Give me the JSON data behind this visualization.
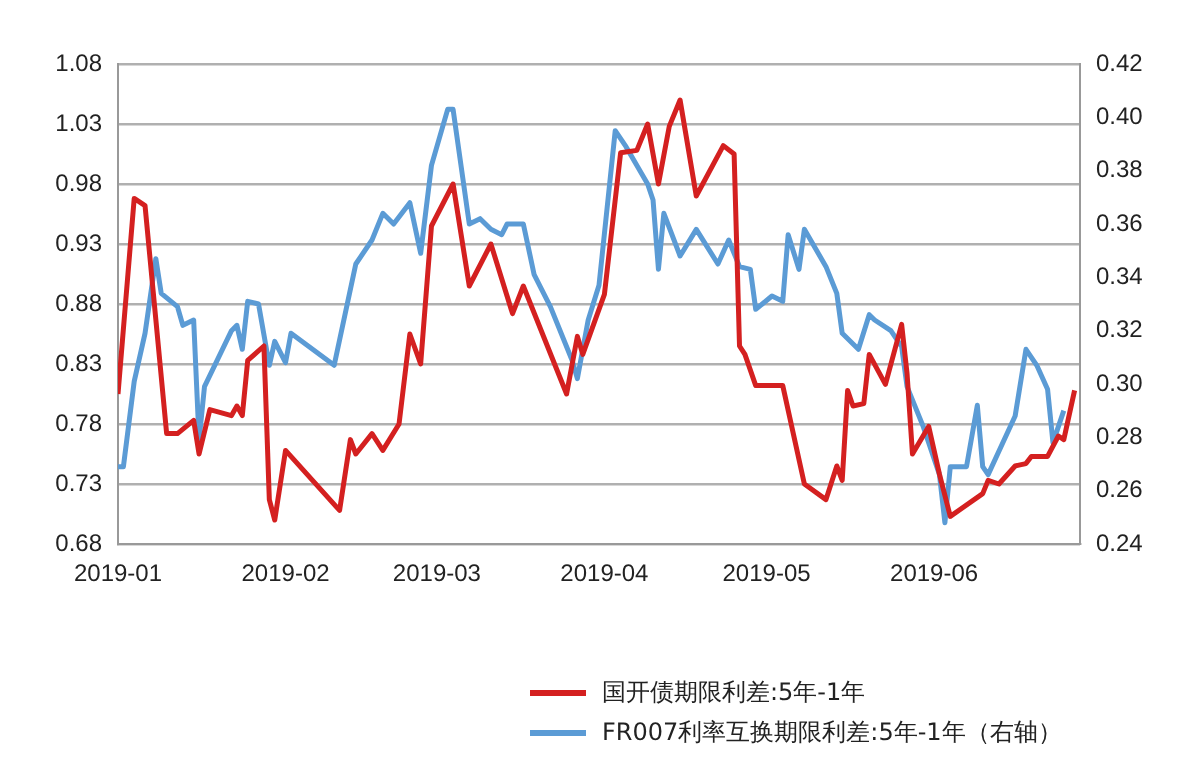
{
  "chart_data": {
    "type": "line",
    "xlim": [
      "2019-01-01",
      "2019-06-28"
    ],
    "xticks": [
      {
        "value": "2019-01-01",
        "label": "2019-01"
      },
      {
        "value": "2019-02-01",
        "label": "2019-02"
      },
      {
        "value": "2019-03-01",
        "label": "2019-03"
      },
      {
        "value": "2019-04-01",
        "label": "2019-04"
      },
      {
        "value": "2019-05-01",
        "label": "2019-05"
      },
      {
        "value": "2019-06-01",
        "label": "2019-06"
      }
    ],
    "ylim": [
      0.68,
      1.08
    ],
    "yticks": [
      0.68,
      0.73,
      0.78,
      0.83,
      0.88,
      0.93,
      0.98,
      1.03,
      1.08
    ],
    "y2lim": [
      0.24,
      0.42
    ],
    "y2ticks": [
      0.24,
      0.26,
      0.28,
      {
        "value": 0.3,
        "label": "0.30"
      },
      0.32,
      0.34,
      0.36,
      0.38,
      {
        "value": 0.4,
        "label": "0.40"
      },
      0.42
    ],
    "grid": "y",
    "legend": "bottom",
    "marker": "none",
    "line_style": "solid",
    "series": [
      {
        "name": "国开债期限利差:5年-1年",
        "color": "#d42020",
        "x": [
          "2019-01-01",
          "2019-01-04",
          "2019-01-06",
          "2019-01-10",
          "2019-01-12",
          "2019-01-15",
          "2019-01-16",
          "2019-01-18",
          "2019-01-22",
          "2019-01-23",
          "2019-01-24",
          "2019-01-25",
          "2019-01-28",
          "2019-01-29",
          "2019-01-30",
          "2019-02-01",
          "2019-02-11",
          "2019-02-13",
          "2019-02-14",
          "2019-02-17",
          "2019-02-19",
          "2019-02-22",
          "2019-02-24",
          "2019-02-26",
          "2019-02-28",
          "2019-03-04",
          "2019-03-07",
          "2019-03-11",
          "2019-03-15",
          "2019-03-17",
          "2019-03-25",
          "2019-03-27",
          "2019-03-28",
          "2019-04-01",
          "2019-04-04",
          "2019-04-07",
          "2019-04-09",
          "2019-04-11",
          "2019-04-13",
          "2019-04-15",
          "2019-04-18",
          "2019-04-23",
          "2019-04-25",
          "2019-04-26",
          "2019-04-27",
          "2019-04-29",
          "2019-05-04",
          "2019-05-08",
          "2019-05-12",
          "2019-05-14",
          "2019-05-15",
          "2019-05-16",
          "2019-05-17",
          "2019-05-19",
          "2019-05-20",
          "2019-05-23",
          "2019-05-26",
          "2019-05-27",
          "2019-05-28",
          "2019-05-31",
          "2019-06-02",
          "2019-06-04",
          "2019-06-10",
          "2019-06-11",
          "2019-06-13",
          "2019-06-16",
          "2019-06-18",
          "2019-06-19",
          "2019-06-22",
          "2019-06-24",
          "2019-06-25",
          "2019-06-27"
        ],
        "values": [
          0.805,
          0.968,
          0.962,
          0.772,
          0.772,
          0.783,
          0.755,
          0.792,
          0.787,
          0.795,
          0.787,
          0.833,
          0.845,
          0.717,
          0.7,
          0.758,
          0.708,
          0.767,
          0.755,
          0.772,
          0.758,
          0.78,
          0.855,
          0.83,
          0.945,
          0.98,
          0.895,
          0.93,
          0.872,
          0.895,
          0.805,
          0.853,
          0.838,
          0.888,
          1.006,
          1.008,
          1.03,
          0.98,
          1.028,
          1.05,
          0.97,
          1.012,
          1.005,
          0.845,
          0.838,
          0.812,
          0.812,
          0.73,
          0.717,
          0.745,
          0.733,
          0.808,
          0.795,
          0.797,
          0.838,
          0.813,
          0.863,
          0.822,
          0.755,
          0.778,
          0.738,
          0.703,
          0.722,
          0.733,
          0.73,
          0.745,
          0.747,
          0.753,
          0.753,
          0.77,
          0.767,
          0.808
        ]
      },
      {
        "name": "FR007利率互换期限利差:5年-1年（右轴）",
        "color": "#5b9bd5",
        "axis": "y2",
        "x": [
          "2019-01-01",
          "2019-01-02",
          "2019-01-04",
          "2019-01-06",
          "2019-01-08",
          "2019-01-09",
          "2019-01-12",
          "2019-01-13",
          "2019-01-15",
          "2019-01-16",
          "2019-01-17",
          "2019-01-22",
          "2019-01-23",
          "2019-01-24",
          "2019-01-25",
          "2019-01-27",
          "2019-01-29",
          "2019-01-30",
          "2019-02-01",
          "2019-02-02",
          "2019-02-10",
          "2019-02-14",
          "2019-02-17",
          "2019-02-19",
          "2019-02-21",
          "2019-02-24",
          "2019-02-26",
          "2019-02-28",
          "2019-03-03",
          "2019-03-04",
          "2019-03-07",
          "2019-03-09",
          "2019-03-11",
          "2019-03-13",
          "2019-03-14",
          "2019-03-17",
          "2019-03-19",
          "2019-03-22",
          "2019-03-26",
          "2019-03-27",
          "2019-03-29",
          "2019-03-31",
          "2019-04-03",
          "2019-04-05",
          "2019-04-09",
          "2019-04-10",
          "2019-04-11",
          "2019-04-12",
          "2019-04-15",
          "2019-04-18",
          "2019-04-22",
          "2019-04-24",
          "2019-04-26",
          "2019-04-28",
          "2019-04-29",
          "2019-05-02",
          "2019-05-04",
          "2019-05-05",
          "2019-05-07",
          "2019-05-08",
          "2019-05-12",
          "2019-05-14",
          "2019-05-15",
          "2019-05-18",
          "2019-05-20",
          "2019-05-21",
          "2019-05-24",
          "2019-05-26",
          "2019-05-27",
          "2019-05-30",
          "2019-06-02",
          "2019-06-03",
          "2019-06-04",
          "2019-06-07",
          "2019-06-09",
          "2019-06-10",
          "2019-06-11",
          "2019-06-16",
          "2019-06-18",
          "2019-06-20",
          "2019-06-22",
          "2019-06-23",
          "2019-06-25"
        ],
        "values": [
          0.269,
          0.269,
          0.301,
          0.319,
          0.347,
          0.334,
          0.329,
          0.322,
          0.324,
          0.279,
          0.299,
          0.32,
          0.322,
          0.313,
          0.331,
          0.33,
          0.307,
          0.316,
          0.308,
          0.319,
          0.307,
          0.345,
          0.354,
          0.364,
          0.36,
          0.368,
          0.349,
          0.382,
          0.403,
          0.403,
          0.36,
          0.362,
          0.358,
          0.356,
          0.36,
          0.36,
          0.341,
          0.329,
          0.309,
          0.302,
          0.324,
          0.337,
          0.395,
          0.389,
          0.375,
          0.369,
          0.343,
          0.364,
          0.348,
          0.358,
          0.345,
          0.354,
          0.344,
          0.343,
          0.328,
          0.333,
          0.331,
          0.356,
          0.343,
          0.358,
          0.344,
          0.334,
          0.319,
          0.313,
          0.326,
          0.324,
          0.32,
          0.314,
          0.299,
          0.284,
          0.266,
          0.248,
          0.269,
          0.269,
          0.292,
          0.269,
          0.266,
          0.288,
          0.313,
          0.307,
          0.298,
          0.278,
          0.29
        ]
      }
    ]
  }
}
